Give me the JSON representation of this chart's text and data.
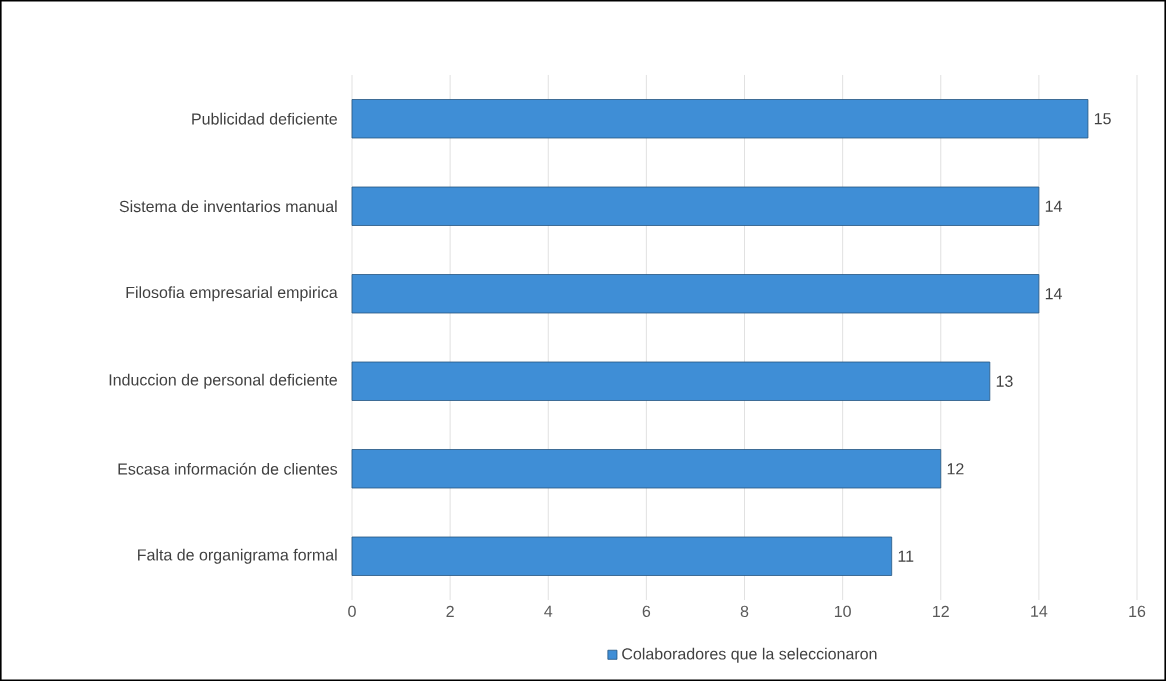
{
  "chart_data": {
    "type": "bar",
    "orientation": "horizontal",
    "categories": [
      "Publicidad deficiente",
      "Sistema de inventarios manual",
      "Filosofia empresarial empirica",
      "Induccion de personal deficiente",
      "Escasa información de clientes",
      "Falta de organigrama formal"
    ],
    "series": [
      {
        "name": "Colaboradores que la seleccionaron",
        "color": "#3f8ed6",
        "values": [
          15,
          14,
          14,
          13,
          12,
          11
        ]
      }
    ],
    "xlim": [
      0,
      16
    ],
    "xticks": [
      0,
      2,
      4,
      6,
      8,
      10,
      12,
      14,
      16
    ],
    "grid": "x",
    "legend": "bottom",
    "data_labels": true
  }
}
